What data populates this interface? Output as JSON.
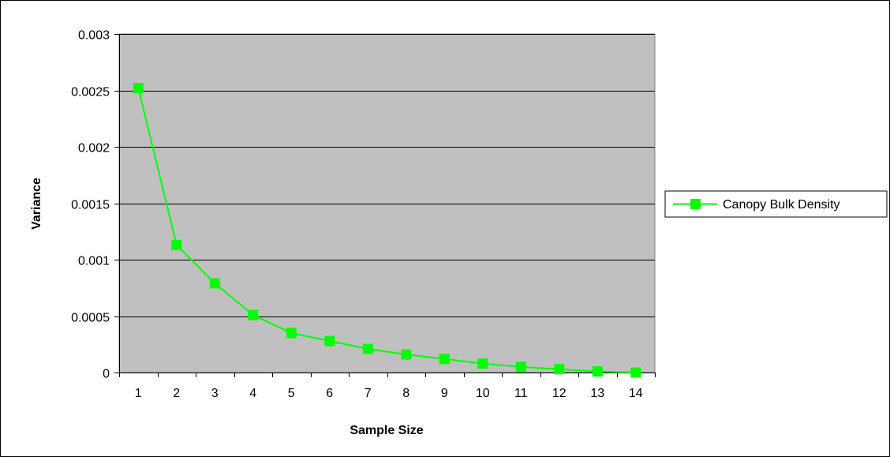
{
  "chart_data": {
    "type": "line",
    "title": "",
    "xlabel": "Sample Size",
    "ylabel": "Variance",
    "x": [
      1,
      2,
      3,
      4,
      5,
      6,
      7,
      8,
      9,
      10,
      11,
      12,
      13,
      14
    ],
    "x_tick_labels": [
      "1",
      "2",
      "3",
      "4",
      "5",
      "6",
      "7",
      "8",
      "9",
      "10",
      "11",
      "12",
      "13",
      "14"
    ],
    "y_tick_labels": [
      "0",
      "0.0005",
      "0.001",
      "0.0015",
      "0.002",
      "0.0025",
      "0.003"
    ],
    "y_ticks": [
      0,
      0.0005,
      0.001,
      0.0015,
      0.002,
      0.0025,
      0.003
    ],
    "ylim": [
      0,
      0.003
    ],
    "grid": "horizontal",
    "legend_position": "right",
    "plot_background": "#c0c0c0",
    "series": [
      {
        "name": "Canopy Bulk Density",
        "color": "#00ff00",
        "marker": "square",
        "values": [
          0.00252,
          0.00113,
          0.00079,
          0.00051,
          0.00035,
          0.00028,
          0.00021,
          0.00016,
          0.00012,
          8e-05,
          5e-05,
          3e-05,
          1e-05,
          0.0
        ]
      }
    ]
  }
}
